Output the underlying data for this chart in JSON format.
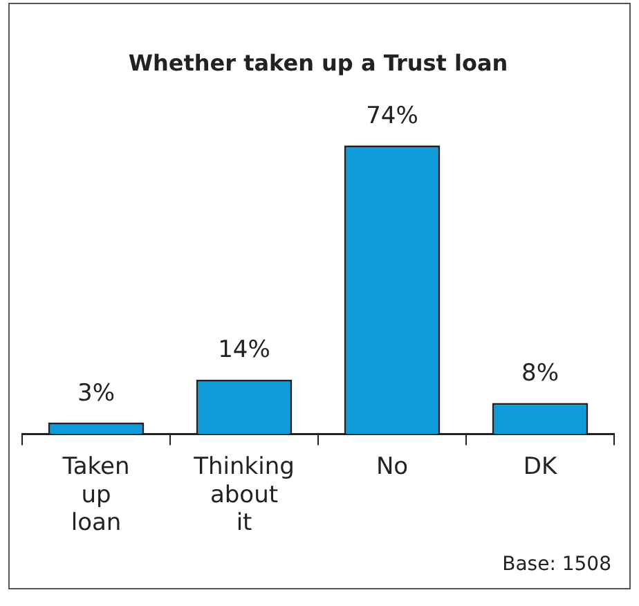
{
  "chart_data": {
    "type": "bar",
    "title": "Whether taken up a Trust loan",
    "categories": [
      "Taken up loan",
      "Thinking about it",
      "No",
      "DK"
    ],
    "values": [
      3,
      14,
      74,
      8
    ],
    "color": "#0e9bd8",
    "value_labels": [
      "3%",
      "14%",
      "74%",
      "8%"
    ],
    "annotations": [
      "Base: 1508"
    ],
    "grid": false,
    "legend": false
  }
}
